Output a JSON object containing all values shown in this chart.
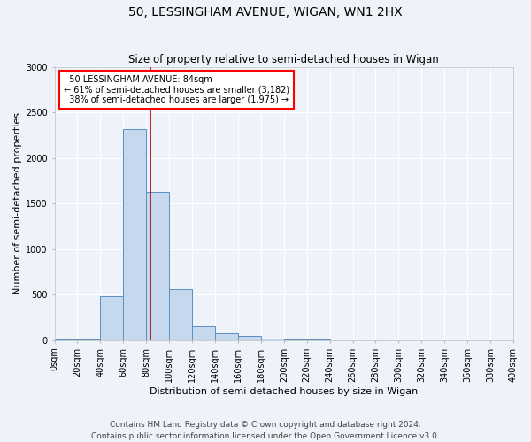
{
  "title": "50, LESSINGHAM AVENUE, WIGAN, WN1 2HX",
  "subtitle": "Size of property relative to semi-detached houses in Wigan",
  "xlabel": "Distribution of semi-detached houses by size in Wigan",
  "ylabel": "Number of semi-detached properties",
  "bin_edges": [
    0,
    20,
    40,
    60,
    80,
    100,
    120,
    140,
    160,
    180,
    200,
    220,
    240,
    260,
    280,
    300,
    320,
    340,
    360,
    380,
    400
  ],
  "bar_heights": [
    5,
    5,
    480,
    2320,
    1630,
    560,
    150,
    80,
    45,
    20,
    8,
    5,
    3,
    2,
    2,
    1,
    1,
    1,
    1,
    1
  ],
  "bar_color": "#c5d8ee",
  "bar_edgecolor": "#5a8fc2",
  "property_size": 84,
  "property_label": "50 LESSINGHAM AVENUE: 84sqm",
  "pct_smaller": 61,
  "pct_larger": 38,
  "n_smaller": 3182,
  "n_larger": 1975,
  "vline_color": "#aa0000",
  "ylim": [
    0,
    3000
  ],
  "xlim": [
    0,
    400
  ],
  "footer_line1": "Contains HM Land Registry data © Crown copyright and database right 2024.",
  "footer_line2": "Contains public sector information licensed under the Open Government Licence v3.0.",
  "bg_color": "#eef2f9",
  "grid_color": "#ffffff",
  "title_fontsize": 10,
  "subtitle_fontsize": 8.5,
  "axis_label_fontsize": 8,
  "tick_fontsize": 7,
  "footer_fontsize": 6.5
}
